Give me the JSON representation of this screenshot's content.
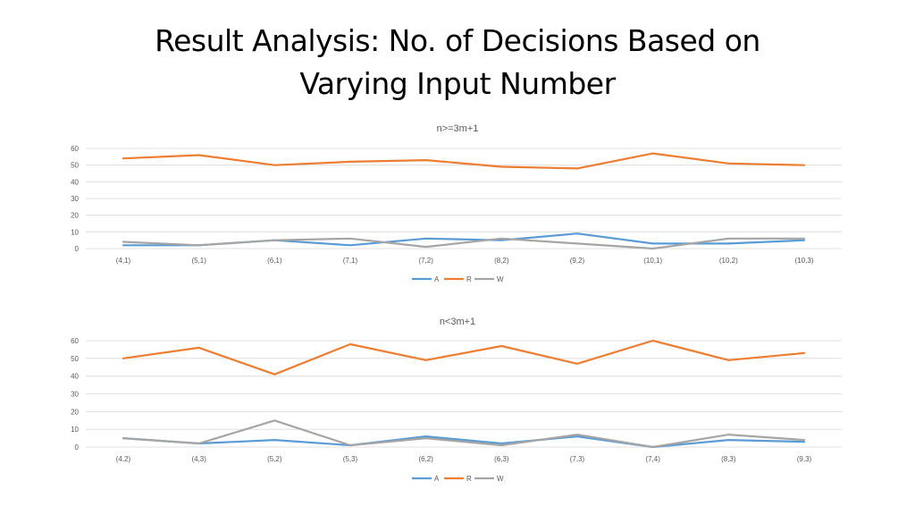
{
  "slide": {
    "title_line1": "Result Analysis: No. of Decisions Based on",
    "title_line2": "Varying Input Number"
  },
  "colors": {
    "A": "#5b9bd5",
    "R": "#ed7d31",
    "W": "#a5a5a5",
    "grid": "#d9d9d9",
    "text": "#595959"
  },
  "chart_data": [
    {
      "type": "line",
      "title": "n>=3m+1",
      "xlabel": "",
      "ylabel": "",
      "ylim": [
        0,
        60
      ],
      "yticks": [
        0,
        10,
        20,
        30,
        40,
        50,
        60
      ],
      "grid": true,
      "legend": "bottom",
      "categories": [
        "(4,1)",
        "(5,1)",
        "(6,1)",
        "(7,1)",
        "(7,2)",
        "(8,2)",
        "(9,2)",
        "(10,1)",
        "(10,2)",
        "(10,3)"
      ],
      "series": [
        {
          "name": "A",
          "values": [
            2,
            2,
            5,
            2,
            6,
            5,
            9,
            3,
            3,
            5
          ]
        },
        {
          "name": "R",
          "values": [
            54,
            56,
            50,
            52,
            53,
            49,
            48,
            57,
            51,
            50
          ]
        },
        {
          "name": "W",
          "values": [
            4,
            2,
            5,
            6,
            1,
            6,
            3,
            0,
            6,
            6
          ]
        }
      ]
    },
    {
      "type": "line",
      "title": "n<3m+1",
      "xlabel": "",
      "ylabel": "",
      "ylim": [
        0,
        60
      ],
      "yticks": [
        0,
        10,
        20,
        30,
        40,
        50,
        60
      ],
      "grid": true,
      "legend": "bottom",
      "categories": [
        "(4,2)",
        "(4,3)",
        "(5,2)",
        "(5,3)",
        "(6,2)",
        "(6,3)",
        "(7,3)",
        "(7,4)",
        "(8,3)",
        "(9,3)"
      ],
      "series": [
        {
          "name": "A",
          "values": [
            5,
            2,
            4,
            1,
            6,
            2,
            6,
            0,
            4,
            3
          ]
        },
        {
          "name": "R",
          "values": [
            50,
            56,
            41,
            58,
            49,
            57,
            47,
            60,
            49,
            53
          ]
        },
        {
          "name": "W",
          "values": [
            5,
            2,
            15,
            1,
            5,
            1,
            7,
            0,
            7,
            4
          ]
        }
      ]
    }
  ]
}
